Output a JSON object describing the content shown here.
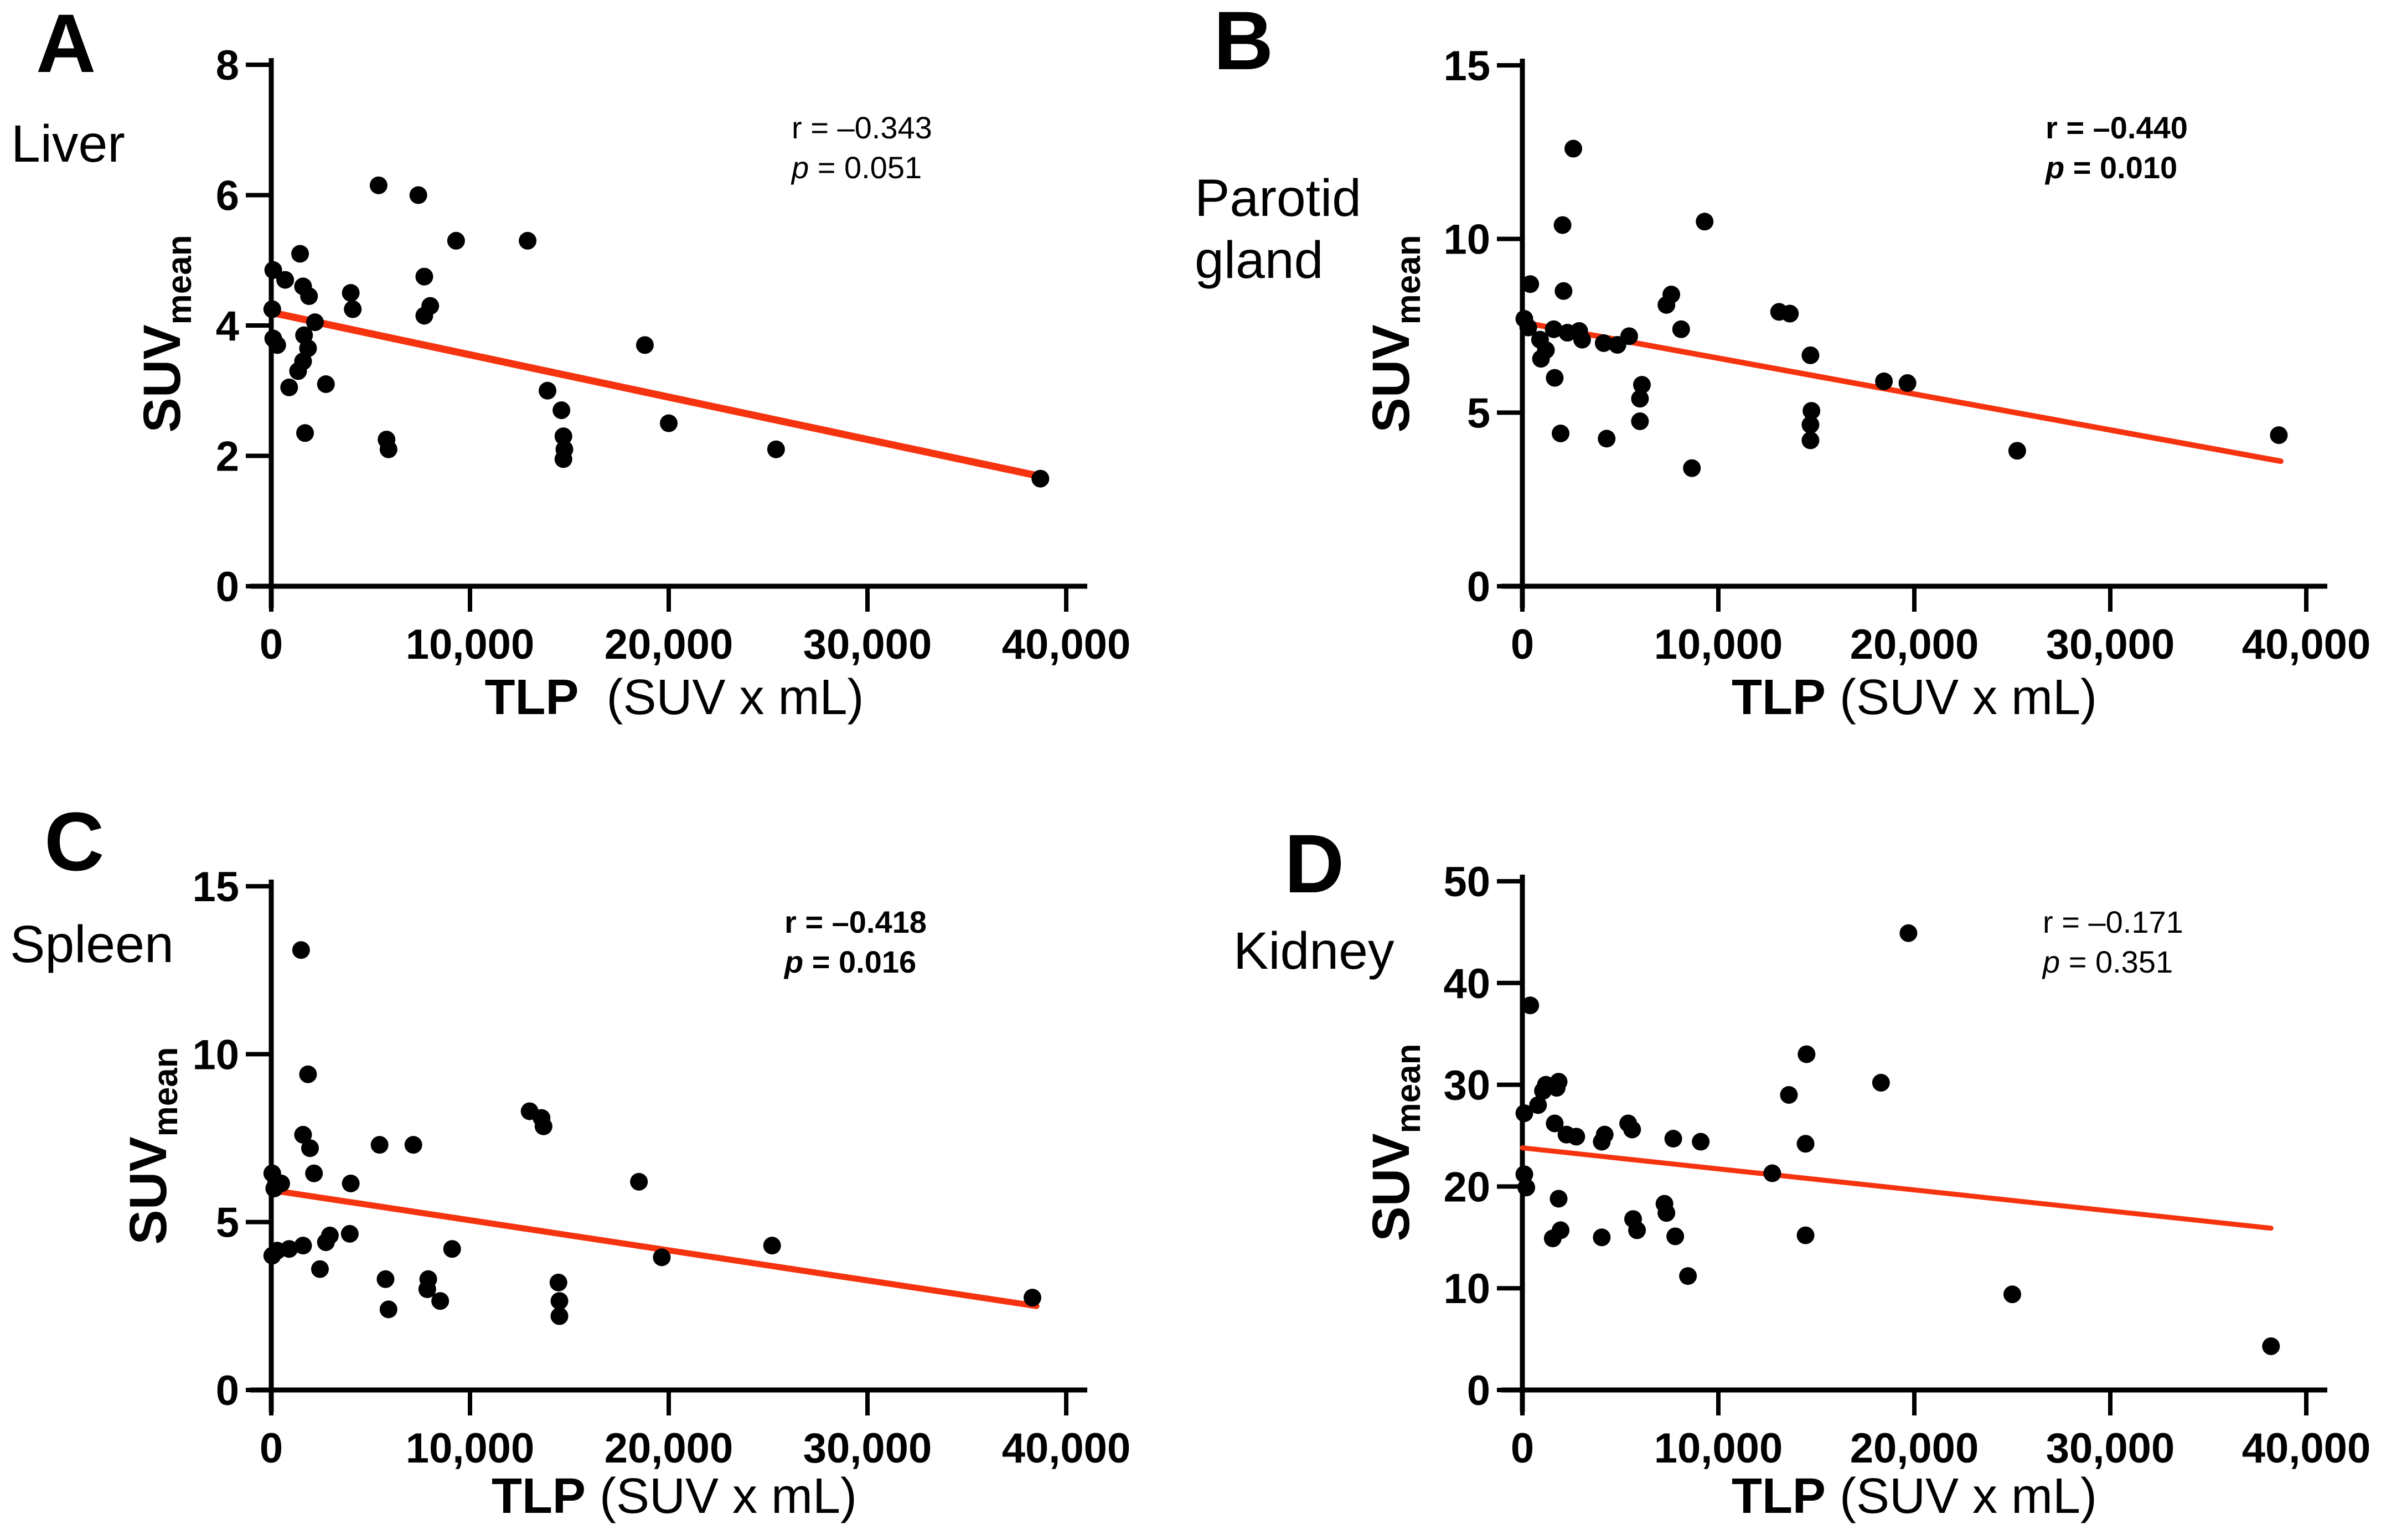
{
  "figure": {
    "background": "#ffffff",
    "point_color": "#000000",
    "trend_color": "#F6330F",
    "axis_color": "#000000",
    "panel_letter_color": "#262626",
    "organ_label_color": "#3a3a3a",
    "x_axis": {
      "title_bold": "TLP",
      "title_rest": " (SUV x mL)",
      "tick_values": [
        0,
        10000,
        20000,
        30000,
        40000
      ],
      "tick_labels": [
        "0",
        "10,000",
        "20,000",
        "30,000",
        "40,000"
      ],
      "range": [
        0,
        40000
      ]
    },
    "y_axis": {
      "title": "SUV",
      "subscript": "mean"
    }
  },
  "chart_data": [
    {
      "type": "scatter",
      "letter": "A",
      "organ_lines": [
        "Liver"
      ],
      "r_text": "r = –0.343",
      "p_text": "p = 0.051",
      "annotation_bold": false,
      "title_gap_wide": true,
      "xlabel": "TLP (SUV x mL)",
      "ylabel": "SUVmean",
      "xlim": [
        0,
        40000
      ],
      "ylim": [
        0,
        8
      ],
      "ytick_values": [
        0,
        2,
        4,
        6,
        8
      ],
      "ytick_labels": [
        "0",
        "2",
        "4",
        "6",
        "8"
      ],
      "points": [
        [
          100,
          4.85
        ],
        [
          700,
          4.7
        ],
        [
          1600,
          4.6
        ],
        [
          1900,
          4.45
        ],
        [
          50,
          4.25
        ],
        [
          2200,
          4.05
        ],
        [
          4000,
          4.5
        ],
        [
          4100,
          4.25
        ],
        [
          1450,
          5.1
        ],
        [
          5400,
          6.15
        ],
        [
          7400,
          6.0
        ],
        [
          9300,
          5.3
        ],
        [
          12900,
          5.3
        ],
        [
          7700,
          4.75
        ],
        [
          8000,
          4.3
        ],
        [
          7700,
          4.15
        ],
        [
          100,
          3.8
        ],
        [
          300,
          3.7
        ],
        [
          1650,
          3.85
        ],
        [
          1850,
          3.65
        ],
        [
          1600,
          3.45
        ],
        [
          1350,
          3.3
        ],
        [
          900,
          3.05
        ],
        [
          2750,
          3.1
        ],
        [
          1700,
          2.35
        ],
        [
          5800,
          2.25
        ],
        [
          5900,
          2.1
        ],
        [
          13900,
          3.0
        ],
        [
          14600,
          2.7
        ],
        [
          14700,
          2.3
        ],
        [
          14750,
          2.1
        ],
        [
          14700,
          1.95
        ],
        [
          18800,
          3.7
        ],
        [
          20000,
          2.5
        ],
        [
          25400,
          2.1
        ],
        [
          38700,
          1.65
        ]
      ],
      "trend": {
        "x1": 0,
        "y1": 4.2,
        "x2": 38800,
        "y2": 1.68
      }
    },
    {
      "type": "scatter",
      "letter": "B",
      "organ_lines": [
        "Parotid",
        "gland"
      ],
      "r_text": "r = –0.440",
      "p_text": "p = 0.010",
      "annotation_bold": true,
      "title_gap_wide": false,
      "xlabel": "TLP (SUV x mL)",
      "ylabel": "SUVmean",
      "xlim": [
        0,
        40000
      ],
      "ylim": [
        0,
        15
      ],
      "ytick_values": [
        0,
        5,
        10,
        15
      ],
      "ytick_labels": [
        "0",
        "5",
        "10",
        "15"
      ],
      "points": [
        [
          2600,
          12.6
        ],
        [
          2050,
          10.4
        ],
        [
          9300,
          10.5
        ],
        [
          400,
          8.7
        ],
        [
          2100,
          8.5
        ],
        [
          7600,
          8.4
        ],
        [
          7350,
          8.1
        ],
        [
          8100,
          7.4
        ],
        [
          100,
          7.7
        ],
        [
          300,
          7.45
        ],
        [
          1600,
          7.4
        ],
        [
          900,
          7.1
        ],
        [
          1200,
          6.8
        ],
        [
          2300,
          7.3
        ],
        [
          2900,
          7.35
        ],
        [
          3050,
          7.1
        ],
        [
          4150,
          7.0
        ],
        [
          4850,
          6.95
        ],
        [
          5450,
          7.2
        ],
        [
          950,
          6.55
        ],
        [
          1650,
          6.0
        ],
        [
          6100,
          5.8
        ],
        [
          6000,
          5.4
        ],
        [
          6000,
          4.75
        ],
        [
          1950,
          4.4
        ],
        [
          4300,
          4.25
        ],
        [
          8650,
          3.4
        ],
        [
          13100,
          7.9
        ],
        [
          13650,
          7.85
        ],
        [
          14700,
          6.65
        ],
        [
          14750,
          5.05
        ],
        [
          14700,
          4.65
        ],
        [
          14700,
          4.2
        ],
        [
          18450,
          5.9
        ],
        [
          19650,
          5.85
        ],
        [
          25250,
          3.9
        ],
        [
          38600,
          4.35
        ]
      ],
      "trend": {
        "x1": 0,
        "y1": 7.6,
        "x2": 38700,
        "y2": 3.6
      }
    },
    {
      "type": "scatter",
      "letter": "C",
      "organ_lines": [
        "Spleen"
      ],
      "r_text": "r = –0.418",
      "p_text": "p = 0.016",
      "annotation_bold": true,
      "title_gap_wide": false,
      "xlabel": "TLP (SUV x mL)",
      "ylabel": "SUVmean",
      "xlim": [
        0,
        40000
      ],
      "ylim": [
        0,
        15
      ],
      "ytick_values": [
        0,
        5,
        10,
        15
      ],
      "ytick_labels": [
        "0",
        "5",
        "10",
        "15"
      ],
      "points": [
        [
          1500,
          13.1
        ],
        [
          1850,
          9.4
        ],
        [
          13000,
          8.3
        ],
        [
          13600,
          8.1
        ],
        [
          13700,
          7.85
        ],
        [
          1600,
          7.6
        ],
        [
          1950,
          7.2
        ],
        [
          5450,
          7.3
        ],
        [
          7150,
          7.3
        ],
        [
          2150,
          6.45
        ],
        [
          50,
          6.45
        ],
        [
          250,
          6.2
        ],
        [
          500,
          6.15
        ],
        [
          150,
          6.0
        ],
        [
          4000,
          6.15
        ],
        [
          18500,
          6.2
        ],
        [
          50,
          4.0
        ],
        [
          300,
          4.15
        ],
        [
          900,
          4.2
        ],
        [
          1600,
          4.3
        ],
        [
          2750,
          4.4
        ],
        [
          2950,
          4.6
        ],
        [
          3950,
          4.65
        ],
        [
          2450,
          3.6
        ],
        [
          5750,
          3.3
        ],
        [
          5900,
          2.4
        ],
        [
          7900,
          3.3
        ],
        [
          7850,
          3.0
        ],
        [
          8500,
          2.65
        ],
        [
          9100,
          4.2
        ],
        [
          14450,
          3.2
        ],
        [
          14500,
          2.65
        ],
        [
          14500,
          2.2
        ],
        [
          19650,
          3.95
        ],
        [
          25200,
          4.3
        ],
        [
          38300,
          2.75
        ]
      ],
      "trend": {
        "x1": 0,
        "y1": 5.95,
        "x2": 38500,
        "y2": 2.5
      }
    },
    {
      "type": "scatter",
      "letter": "D",
      "organ_lines": [
        "Kidney"
      ],
      "r_text": "r = –0.171",
      "p_text": "p = 0.351",
      "annotation_bold": false,
      "title_gap_wide": false,
      "xlabel": "TLP (SUV x mL)",
      "ylabel": "SUVmean",
      "xlim": [
        0,
        40000
      ],
      "ylim": [
        0,
        50
      ],
      "ytick_values": [
        0,
        10,
        20,
        30,
        40,
        50
      ],
      "ytick_labels": [
        "0",
        "10",
        "20",
        "30",
        "40",
        "50"
      ],
      "points": [
        [
          400,
          37.8
        ],
        [
          19700,
          44.9
        ],
        [
          14500,
          33.0
        ],
        [
          13600,
          29.0
        ],
        [
          18300,
          30.2
        ],
        [
          100,
          27.2
        ],
        [
          800,
          28.0
        ],
        [
          1050,
          29.4
        ],
        [
          1200,
          30.0
        ],
        [
          1750,
          29.7
        ],
        [
          1850,
          30.3
        ],
        [
          1650,
          26.2
        ],
        [
          2250,
          25.1
        ],
        [
          2750,
          24.9
        ],
        [
          4050,
          24.4
        ],
        [
          4200,
          25.1
        ],
        [
          5400,
          26.2
        ],
        [
          5600,
          25.6
        ],
        [
          7700,
          24.7
        ],
        [
          9100,
          24.4
        ],
        [
          12750,
          21.3
        ],
        [
          14450,
          24.2
        ],
        [
          100,
          21.2
        ],
        [
          200,
          19.9
        ],
        [
          1850,
          18.8
        ],
        [
          1950,
          15.7
        ],
        [
          1550,
          14.9
        ],
        [
          4050,
          15.0
        ],
        [
          5650,
          16.8
        ],
        [
          5850,
          15.7
        ],
        [
          7250,
          18.3
        ],
        [
          7350,
          17.4
        ],
        [
          7800,
          15.1
        ],
        [
          8450,
          11.2
        ],
        [
          14450,
          15.2
        ],
        [
          25000,
          9.4
        ],
        [
          38200,
          4.3
        ]
      ],
      "trend": {
        "x1": 0,
        "y1": 23.8,
        "x2": 38200,
        "y2": 15.9
      }
    }
  ]
}
